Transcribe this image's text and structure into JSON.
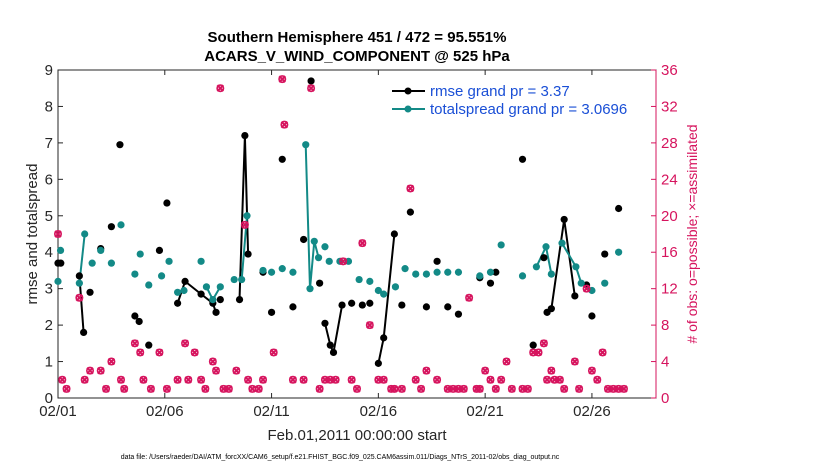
{
  "chart_data": {
    "type": "line",
    "title": [
      "Southern Hemisphere 451 / 472 = 95.551%",
      "ACARS_V_WIND_COMPONENT @ 525 hPa"
    ],
    "xlabel": "Feb.01,2011 00:00:00 start",
    "ylabel": "rmse and totalspread",
    "y2label": "# of obs: o=possible; ×=assimilated",
    "xlim": [
      0,
      28
    ],
    "ylim": [
      0,
      9
    ],
    "y2lim": [
      0,
      36
    ],
    "x_ticks": [
      0,
      5,
      10,
      15,
      20,
      25
    ],
    "x_tick_labels": [
      "02/01",
      "02/06",
      "02/11",
      "02/16",
      "02/21",
      "02/26"
    ],
    "y_ticks": [
      "0",
      "1",
      "2",
      "3",
      "4",
      "5",
      "6",
      "7",
      "8",
      "9"
    ],
    "y2_ticks": [
      "0",
      "4",
      "8",
      "12",
      "16",
      "20",
      "24",
      "28",
      "32",
      "36"
    ],
    "legend": [
      {
        "name": "rmse grand pr = 3.37",
        "color": "#000000"
      },
      {
        "name": "totalspread grand pr = 3.0696",
        "color": "#138a87"
      }
    ],
    "series": [
      {
        "name": "rmse",
        "color": "#000000",
        "points": [
          [
            0.0,
            3.7
          ],
          [
            0.13,
            3.7
          ],
          [
            1.0,
            3.35
          ],
          [
            1.2,
            1.8
          ],
          [
            1.5,
            2.9
          ],
          [
            2.0,
            4.1
          ],
          [
            2.5,
            4.7
          ],
          [
            2.9,
            6.95
          ],
          [
            3.6,
            2.25
          ],
          [
            3.8,
            2.1
          ],
          [
            4.25,
            1.45
          ],
          [
            4.75,
            4.05
          ],
          [
            5.1,
            5.35
          ],
          [
            5.6,
            2.6
          ],
          [
            5.95,
            3.2
          ],
          [
            6.7,
            2.85
          ],
          [
            7.25,
            2.6
          ],
          [
            7.4,
            2.35
          ],
          [
            7.6,
            2.7
          ],
          [
            8.5,
            2.7
          ],
          [
            8.75,
            7.2
          ],
          [
            8.9,
            3.95
          ],
          [
            9.6,
            3.45
          ],
          [
            10.0,
            2.35
          ],
          [
            10.5,
            6.55
          ],
          [
            11.0,
            2.5
          ],
          [
            11.5,
            4.35
          ],
          [
            11.85,
            8.7
          ],
          [
            12.25,
            3.15
          ],
          [
            12.5,
            2.05
          ],
          [
            12.75,
            1.45
          ],
          [
            12.9,
            1.25
          ],
          [
            13.3,
            2.55
          ],
          [
            13.75,
            2.6
          ],
          [
            14.25,
            2.55
          ],
          [
            14.6,
            2.6
          ],
          [
            15.0,
            0.95
          ],
          [
            15.25,
            1.65
          ],
          [
            15.75,
            4.5
          ],
          [
            16.1,
            2.55
          ],
          [
            16.5,
            5.1
          ],
          [
            17.25,
            2.5
          ],
          [
            17.75,
            3.75
          ],
          [
            18.25,
            2.5
          ],
          [
            18.75,
            2.3
          ],
          [
            19.75,
            3.3
          ],
          [
            20.25,
            3.15
          ],
          [
            20.5,
            3.45
          ],
          [
            21.0,
            8.1
          ],
          [
            21.75,
            6.55
          ],
          [
            22.25,
            1.45
          ],
          [
            22.75,
            3.85
          ],
          [
            22.9,
            2.35
          ],
          [
            23.1,
            2.45
          ],
          [
            23.7,
            4.9
          ],
          [
            24.2,
            2.8
          ],
          [
            24.75,
            3.1
          ],
          [
            25.0,
            2.25
          ],
          [
            25.6,
            3.95
          ],
          [
            26.25,
            5.2
          ]
        ],
        "connected_runs": [
          [
            2,
            3
          ],
          [
            13,
            17
          ],
          [
            19,
            21
          ],
          [
            29,
            32
          ],
          [
            36,
            38
          ],
          [
            53,
            55
          ],
          [
            59,
            61
          ]
        ]
      },
      {
        "name": "totalspread",
        "color": "#138a87",
        "points": [
          [
            0.0,
            3.2
          ],
          [
            0.12,
            4.05
          ],
          [
            1.0,
            3.15
          ],
          [
            1.25,
            4.5
          ],
          [
            1.6,
            3.7
          ],
          [
            2.0,
            4.05
          ],
          [
            2.5,
            3.7
          ],
          [
            2.95,
            4.75
          ],
          [
            3.6,
            3.4
          ],
          [
            3.85,
            3.95
          ],
          [
            4.25,
            3.1
          ],
          [
            4.85,
            3.35
          ],
          [
            5.2,
            3.75
          ],
          [
            5.6,
            2.9
          ],
          [
            5.9,
            2.95
          ],
          [
            6.7,
            3.75
          ],
          [
            6.95,
            3.05
          ],
          [
            7.25,
            2.7
          ],
          [
            7.6,
            3.05
          ],
          [
            8.25,
            3.25
          ],
          [
            8.6,
            3.25
          ],
          [
            8.85,
            5.0
          ],
          [
            9.6,
            3.5
          ],
          [
            10.0,
            3.45
          ],
          [
            10.5,
            3.55
          ],
          [
            11.0,
            3.45
          ],
          [
            11.6,
            6.95
          ],
          [
            11.8,
            3.0
          ],
          [
            12.0,
            4.3
          ],
          [
            12.2,
            3.85
          ],
          [
            12.5,
            4.15
          ],
          [
            12.7,
            3.75
          ],
          [
            13.2,
            3.75
          ],
          [
            13.6,
            3.75
          ],
          [
            14.1,
            3.25
          ],
          [
            14.6,
            3.2
          ],
          [
            15.0,
            2.95
          ],
          [
            15.25,
            2.85
          ],
          [
            15.8,
            3.05
          ],
          [
            16.25,
            3.55
          ],
          [
            16.75,
            3.4
          ],
          [
            17.25,
            3.4
          ],
          [
            17.75,
            3.45
          ],
          [
            18.25,
            3.45
          ],
          [
            18.75,
            3.45
          ],
          [
            19.75,
            3.35
          ],
          [
            20.25,
            3.45
          ],
          [
            20.75,
            4.2
          ],
          [
            21.75,
            3.35
          ],
          [
            22.4,
            3.6
          ],
          [
            22.85,
            4.15
          ],
          [
            23.1,
            3.4
          ],
          [
            23.6,
            4.25
          ],
          [
            24.25,
            3.6
          ],
          [
            24.5,
            3.15
          ],
          [
            25.0,
            2.95
          ],
          [
            25.6,
            3.15
          ],
          [
            26.25,
            4.0
          ]
        ],
        "connected_runs": [
          [
            2,
            3
          ],
          [
            16,
            18
          ],
          [
            20,
            21
          ],
          [
            26,
            29
          ],
          [
            36,
            37
          ],
          [
            49,
            51
          ],
          [
            52,
            55
          ]
        ]
      },
      {
        "name": "nobs_possible",
        "axis": "right",
        "color": "#d6145e",
        "points": [
          [
            0.0,
            18.0
          ],
          [
            0.2,
            2.0
          ],
          [
            0.4,
            1.0
          ],
          [
            1.0,
            11.0
          ],
          [
            1.25,
            2.0
          ],
          [
            1.5,
            3.0
          ],
          [
            2.0,
            3.0
          ],
          [
            2.25,
            1.0
          ],
          [
            2.5,
            4.0
          ],
          [
            2.95,
            2.0
          ],
          [
            3.1,
            1.0
          ],
          [
            3.6,
            6.0
          ],
          [
            3.85,
            5.0
          ],
          [
            4.0,
            2.0
          ],
          [
            4.35,
            1.0
          ],
          [
            4.75,
            5.0
          ],
          [
            5.1,
            1.0
          ],
          [
            5.6,
            2.0
          ],
          [
            5.95,
            6.0
          ],
          [
            6.1,
            2.0
          ],
          [
            6.4,
            5.0
          ],
          [
            6.7,
            2.0
          ],
          [
            6.9,
            1.0
          ],
          [
            7.25,
            4.0
          ],
          [
            7.4,
            3.0
          ],
          [
            7.6,
            34.0
          ],
          [
            7.75,
            1.0
          ],
          [
            8.0,
            1.0
          ],
          [
            8.35,
            3.0
          ],
          [
            8.75,
            19.0
          ],
          [
            8.9,
            2.0
          ],
          [
            9.1,
            1.0
          ],
          [
            9.4,
            1.0
          ],
          [
            9.6,
            2.0
          ],
          [
            10.1,
            5.0
          ],
          [
            10.5,
            35.0
          ],
          [
            10.6,
            30.0
          ],
          [
            11.0,
            2.0
          ],
          [
            11.5,
            2.0
          ],
          [
            11.85,
            34.0
          ],
          [
            12.25,
            1.0
          ],
          [
            12.5,
            2.0
          ],
          [
            12.75,
            2.0
          ],
          [
            13.0,
            2.0
          ],
          [
            13.35,
            15.0
          ],
          [
            13.75,
            2.0
          ],
          [
            14.0,
            1.0
          ],
          [
            14.25,
            17.0
          ],
          [
            14.6,
            8.0
          ],
          [
            15.0,
            2.0
          ],
          [
            15.25,
            2.0
          ],
          [
            15.6,
            1.0
          ],
          [
            15.75,
            1.0
          ],
          [
            16.1,
            1.0
          ],
          [
            16.5,
            23.0
          ],
          [
            16.75,
            2.0
          ],
          [
            17.0,
            1.0
          ],
          [
            17.25,
            3.0
          ],
          [
            17.75,
            2.0
          ],
          [
            18.25,
            1.0
          ],
          [
            18.5,
            1.0
          ],
          [
            18.75,
            1.0
          ],
          [
            19.0,
            1.0
          ],
          [
            19.25,
            11.0
          ],
          [
            19.6,
            1.0
          ],
          [
            19.75,
            1.0
          ],
          [
            20.0,
            3.0
          ],
          [
            20.25,
            2.0
          ],
          [
            20.5,
            1.0
          ],
          [
            20.75,
            2.0
          ],
          [
            21.0,
            4.0
          ],
          [
            21.25,
            1.0
          ],
          [
            21.75,
            1.0
          ],
          [
            22.0,
            1.0
          ],
          [
            22.25,
            5.0
          ],
          [
            22.5,
            5.0
          ],
          [
            22.75,
            6.0
          ],
          [
            22.9,
            2.0
          ],
          [
            23.1,
            3.0
          ],
          [
            23.25,
            2.0
          ],
          [
            23.5,
            2.0
          ],
          [
            23.7,
            1.0
          ],
          [
            24.2,
            4.0
          ],
          [
            24.4,
            1.0
          ],
          [
            24.75,
            12.0
          ],
          [
            25.0,
            3.0
          ],
          [
            25.25,
            2.0
          ],
          [
            25.5,
            5.0
          ],
          [
            25.75,
            1.0
          ],
          [
            26.0,
            1.0
          ],
          [
            26.25,
            1.0
          ],
          [
            26.5,
            1.0
          ]
        ]
      }
    ]
  },
  "footer": "data file: /Users/raeder/DAI/ATM_forcXX/CAM6_setup/f.e21.FHIST_BGC.f09_025.CAM6assim.011/Diags_NTrS_2011-02/obs_diag_output.nc"
}
